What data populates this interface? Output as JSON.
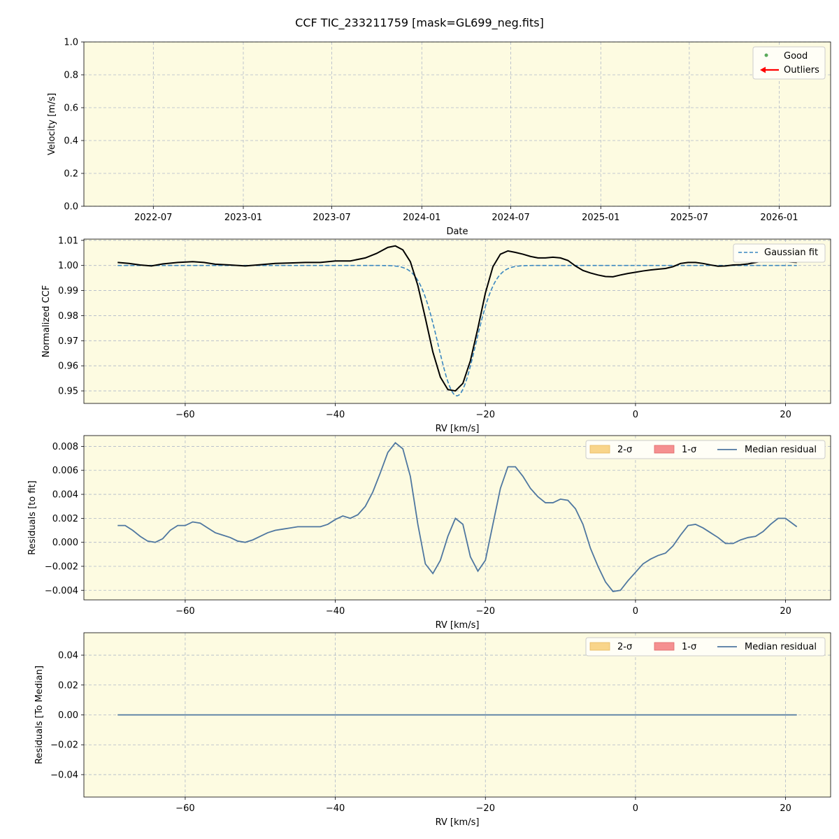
{
  "figure": {
    "title": "CCF TIC_233211759 [mask=GL699_neg.fits]"
  },
  "colors": {
    "panel_bg": "#fdfbe1",
    "grid": "#b0b8c8",
    "ccf": "#000000",
    "gaussian": "#3a87c0",
    "median_residual": "#4f77a0",
    "good": "#5aaa5a",
    "outliers": "#ff0000",
    "two_sigma": "#f9d58a",
    "one_sigma": "#f59090"
  },
  "chart_data": [
    {
      "type": "scatter",
      "name": "velocity-panel",
      "xlabel": "Date",
      "ylabel": "Velocity [m/s]",
      "x_ticks": [
        "2022-07",
        "2023-01",
        "2023-07",
        "2024-01",
        "2024-07",
        "2025-01",
        "2025-07",
        "2026-01"
      ],
      "xlim": [
        "2022-02-09",
        "2026-04-16"
      ],
      "ylim": [
        0,
        1.0
      ],
      "y_ticks": [
        "0.0",
        "0.2",
        "0.4",
        "0.6",
        "0.8",
        "1.0"
      ],
      "grid": true,
      "legend": {
        "placement": "top-right",
        "entries": [
          {
            "label": "Good",
            "marker": "dot"
          },
          {
            "label": "Outliers",
            "marker": "arrow"
          }
        ]
      },
      "series": []
    },
    {
      "type": "line",
      "name": "ccf-panel",
      "xlabel": "RV [km/s]",
      "ylabel": "Normalized CCF",
      "xlim": [
        -73.5,
        26
      ],
      "ylim": [
        0.945,
        1.0105
      ],
      "x_ticks": [
        -60,
        -40,
        -20,
        0,
        20
      ],
      "x_tick_labels": [
        "−60",
        "−40",
        "−20",
        "0",
        "20"
      ],
      "y_ticks": [
        0.95,
        0.96,
        0.97,
        0.98,
        0.99,
        1.0,
        1.01
      ],
      "y_tick_labels": [
        "0.95",
        "0.96",
        "0.97",
        "0.98",
        "0.99",
        "1.00",
        "1.01"
      ],
      "grid": true,
      "legend": {
        "placement": "top-right",
        "entries": [
          {
            "label": "Gaussian fit",
            "style": "dashed"
          }
        ]
      },
      "gaussian": {
        "center": -23.8,
        "sigma": 2.5,
        "depth": 0.052,
        "continuum": 1.0
      },
      "series": [
        {
          "role": "ccf",
          "x": [
            -69,
            -67.5,
            -66,
            -64.5,
            -63,
            -61,
            -59,
            -57.5,
            -56,
            -54,
            -52,
            -50,
            -48,
            -46,
            -44,
            -42,
            -40,
            -38,
            -36,
            -34.5,
            -33,
            -32,
            -31,
            -30,
            -29,
            -28,
            -27,
            -26,
            -25,
            -24,
            -23,
            -22,
            -21,
            -20,
            -19,
            -18,
            -17,
            -16,
            -15,
            -14,
            -13,
            -12,
            -11,
            -10,
            -9,
            -8,
            -7,
            -6,
            -5,
            -4,
            -3,
            -2,
            -1,
            0,
            1,
            2,
            3,
            4,
            5,
            6,
            7,
            8,
            9,
            10,
            11,
            12,
            13,
            14,
            15,
            16,
            17,
            18,
            19,
            20,
            21.5
          ],
          "y": [
            1.0012,
            1.0008,
            1.0002,
            0.9998,
            1.0006,
            1.0012,
            1.0015,
            1.0012,
            1.0005,
            1.0002,
            0.9998,
            1.0003,
            1.0008,
            1.001,
            1.0012,
            1.0012,
            1.0018,
            1.0018,
            1.003,
            1.0048,
            1.0072,
            1.0078,
            1.0062,
            1.0015,
            0.992,
            0.979,
            0.9655,
            0.9555,
            0.9505,
            0.95,
            0.953,
            0.962,
            0.975,
            0.989,
            0.9995,
            1.0045,
            1.0058,
            1.0052,
            1.0045,
            1.0036,
            1.003,
            1.003,
            1.0033,
            1.003,
            1.002,
            0.9998,
            0.998,
            0.997,
            0.9962,
            0.9956,
            0.9955,
            0.9962,
            0.9968,
            0.9973,
            0.9978,
            0.9982,
            0.9985,
            0.9988,
            0.9995,
            1.0008,
            1.0012,
            1.0012,
            1.0008,
            1.0002,
            0.9997,
            0.9998,
            1.0002,
            1.0003,
            1.0006,
            1.0012,
            1.0018,
            1.002,
            1.0018,
            1.0015,
            1.0012
          ]
        }
      ]
    },
    {
      "type": "line",
      "name": "residual-fit-panel",
      "xlabel": "RV [km/s]",
      "ylabel": "Residuals [to fit]",
      "xlim": [
        -73.5,
        26
      ],
      "ylim": [
        -0.0048,
        0.0089
      ],
      "x_ticks": [
        -60,
        -40,
        -20,
        0,
        20
      ],
      "x_tick_labels": [
        "−60",
        "−40",
        "−20",
        "0",
        "20"
      ],
      "y_ticks": [
        -0.004,
        -0.002,
        0.0,
        0.002,
        0.004,
        0.006,
        0.008
      ],
      "y_tick_labels": [
        "−0.004",
        "−0.002",
        "0.000",
        "0.002",
        "0.004",
        "0.006",
        "0.008"
      ],
      "grid": true,
      "legend": {
        "placement": "top-right",
        "entries": [
          {
            "label": "2-σ",
            "swatch": "two_sigma"
          },
          {
            "label": "1-σ",
            "swatch": "one_sigma"
          },
          {
            "label": "Median residual",
            "style": "line"
          }
        ]
      },
      "series": [
        {
          "role": "median-residual",
          "x": [
            -69,
            -68,
            -67,
            -66,
            -65,
            -64,
            -63,
            -62,
            -61,
            -60,
            -59,
            -58,
            -57,
            -56,
            -55,
            -54,
            -53,
            -52,
            -51,
            -50,
            -49,
            -48,
            -47,
            -46,
            -45,
            -44,
            -43,
            -42,
            -41,
            -40,
            -39,
            -38,
            -37,
            -36,
            -35,
            -34,
            -33,
            -32,
            -31,
            -30,
            -29,
            -28,
            -27,
            -26,
            -25,
            -24,
            -23,
            -22,
            -21,
            -20,
            -19,
            -18,
            -17,
            -16,
            -15,
            -14,
            -13,
            -12,
            -11,
            -10,
            -9,
            -8,
            -7,
            -6,
            -5,
            -4,
            -3,
            -2,
            -1,
            0,
            1,
            2,
            3,
            4,
            5,
            6,
            7,
            8,
            9,
            10,
            11,
            12,
            13,
            14,
            15,
            16,
            17,
            18,
            19,
            20,
            21.5
          ],
          "y": [
            0.0014,
            0.0014,
            0.001,
            0.0005,
            0.0001,
            0.0,
            0.0003,
            0.001,
            0.0014,
            0.0014,
            0.0017,
            0.0016,
            0.0012,
            0.0008,
            0.0006,
            0.0004,
            0.0001,
            0.0,
            0.0002,
            0.0005,
            0.0008,
            0.001,
            0.0011,
            0.0012,
            0.0013,
            0.0013,
            0.0013,
            0.0013,
            0.0015,
            0.0019,
            0.0022,
            0.002,
            0.0023,
            0.003,
            0.0042,
            0.0058,
            0.0075,
            0.0083,
            0.0078,
            0.0055,
            0.0015,
            -0.0018,
            -0.0026,
            -0.0015,
            0.0005,
            0.002,
            0.0015,
            -0.0012,
            -0.0024,
            -0.0015,
            0.0015,
            0.0045,
            0.0063,
            0.0063,
            0.0055,
            0.0045,
            0.0038,
            0.0033,
            0.0033,
            0.0036,
            0.0035,
            0.0028,
            0.0015,
            -0.0005,
            -0.002,
            -0.0033,
            -0.0041,
            -0.004,
            -0.0032,
            -0.0025,
            -0.0018,
            -0.0014,
            -0.0011,
            -0.0009,
            -0.0003,
            0.0006,
            0.0014,
            0.0015,
            0.0012,
            0.0008,
            0.0004,
            -0.0001,
            -0.0001,
            0.0002,
            0.0004,
            0.0005,
            0.0009,
            0.0015,
            0.002,
            0.002,
            0.0013
          ]
        }
      ]
    },
    {
      "type": "line",
      "name": "residual-median-panel",
      "xlabel": "RV [km/s]",
      "ylabel": "Residuals [To Median]",
      "xlim": [
        -73.5,
        26
      ],
      "ylim": [
        -0.055,
        0.055
      ],
      "x_ticks": [
        -60,
        -40,
        -20,
        0,
        20
      ],
      "x_tick_labels": [
        "−60",
        "−40",
        "−20",
        "0",
        "20"
      ],
      "y_ticks": [
        -0.04,
        -0.02,
        0.0,
        0.02,
        0.04
      ],
      "y_tick_labels": [
        "−0.04",
        "−0.02",
        "0.00",
        "0.02",
        "0.04"
      ],
      "grid": true,
      "legend": {
        "placement": "top-right",
        "entries": [
          {
            "label": "2-σ",
            "swatch": "two_sigma"
          },
          {
            "label": "1-σ",
            "swatch": "one_sigma"
          },
          {
            "label": "Median residual",
            "style": "line"
          }
        ]
      },
      "series": [
        {
          "role": "median-residual",
          "x": [
            -69,
            21.5
          ],
          "y": [
            0.0,
            0.0
          ]
        }
      ]
    }
  ]
}
